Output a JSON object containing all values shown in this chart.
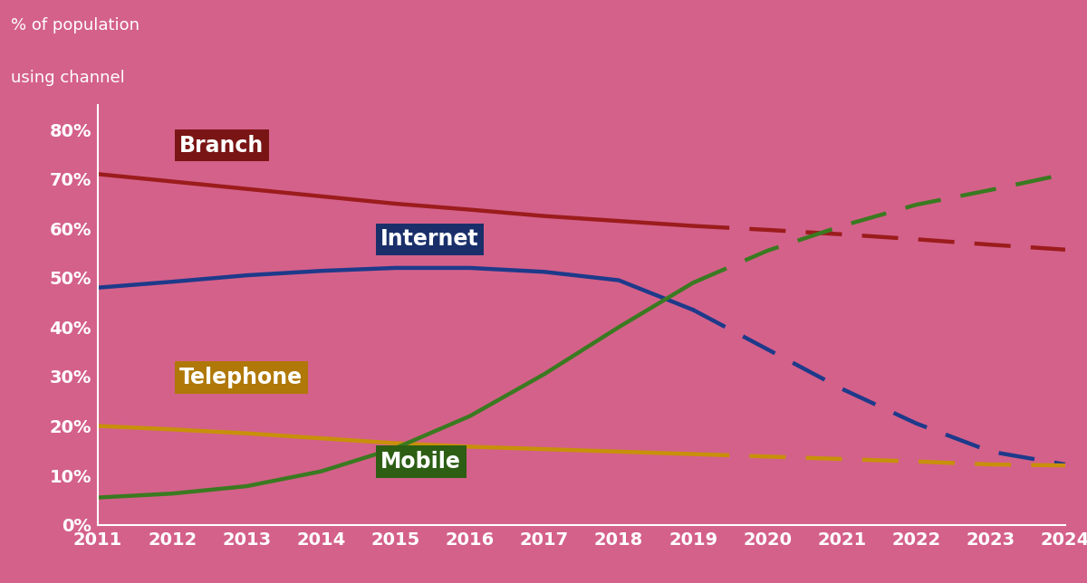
{
  "background_color": "#d4618a",
  "years_solid": [
    2011,
    2012,
    2013,
    2014,
    2015,
    2016,
    2017,
    2018,
    2019
  ],
  "years_dashed": [
    2019,
    2020,
    2021,
    2022,
    2023,
    2024
  ],
  "branch_solid": [
    0.71,
    0.695,
    0.68,
    0.665,
    0.65,
    0.638,
    0.625,
    0.615,
    0.605
  ],
  "branch_dashed": [
    0.605,
    0.597,
    0.588,
    0.578,
    0.567,
    0.557
  ],
  "internet_solid": [
    0.48,
    0.492,
    0.505,
    0.514,
    0.52,
    0.52,
    0.512,
    0.495,
    0.435
  ],
  "internet_dashed": [
    0.435,
    0.355,
    0.275,
    0.205,
    0.148,
    0.122
  ],
  "telephone_solid": [
    0.2,
    0.193,
    0.185,
    0.175,
    0.165,
    0.158,
    0.153,
    0.148,
    0.143
  ],
  "telephone_dashed": [
    0.143,
    0.138,
    0.133,
    0.128,
    0.122,
    0.12
  ],
  "mobile_solid": [
    0.055,
    0.063,
    0.078,
    0.108,
    0.155,
    0.22,
    0.305,
    0.4,
    0.49
  ],
  "mobile_dashed": [
    0.49,
    0.555,
    0.605,
    0.648,
    0.678,
    0.71
  ],
  "branch_color": "#9b1c1c",
  "internet_color": "#1e3a8a",
  "telephone_color": "#c8900a",
  "mobile_color": "#3a7a20",
  "yticks": [
    0.0,
    0.1,
    0.2,
    0.3,
    0.4,
    0.5,
    0.6,
    0.7,
    0.8
  ],
  "ytick_labels": [
    "0%",
    "10%",
    "20%",
    "30%",
    "40%",
    "50%",
    "60%",
    "70%",
    "80%"
  ],
  "xticks": [
    2011,
    2012,
    2013,
    2014,
    2015,
    2016,
    2017,
    2018,
    2019,
    2020,
    2021,
    2022,
    2023,
    2024
  ],
  "linewidth": 3.2,
  "label_fontsize": 17,
  "label_bg_branch": "#7a1515",
  "label_bg_internet": "#1a2f6a",
  "label_bg_telephone": "#b07808",
  "label_bg_mobile": "#2d5e14",
  "tick_fontsize": 14
}
